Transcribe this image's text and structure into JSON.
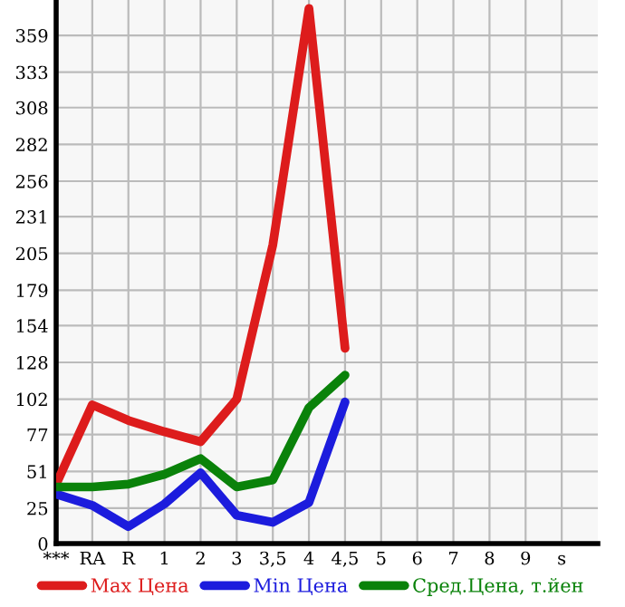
{
  "chart_data": {
    "type": "line",
    "categories": [
      "***",
      "RA",
      "R",
      "1",
      "2",
      "3",
      "3,5",
      "4",
      "4,5",
      "5",
      "6",
      "7",
      "8",
      "9",
      "s"
    ],
    "series": [
      {
        "name": "Max Цена",
        "color": "#dd1c1c",
        "values": [
          42,
          98,
          87,
          79,
          72,
          102,
          211,
          378,
          138,
          null,
          null,
          null,
          null,
          null,
          null
        ]
      },
      {
        "name": "Min Цена",
        "color": "#1c1cdd",
        "values": [
          35,
          27,
          12,
          28,
          50,
          20,
          15,
          29,
          100,
          null,
          null,
          null,
          null,
          null,
          null
        ]
      },
      {
        "name": "Сред.Цена, т.йен",
        "color": "#0a820a",
        "values": [
          40,
          40,
          42,
          49,
          60,
          40,
          45,
          96,
          119,
          null,
          null,
          null,
          null,
          null,
          null
        ]
      }
    ],
    "ylim": [
      0,
      384
    ],
    "yticks": [
      0,
      25,
      51,
      77,
      102,
      128,
      154,
      179,
      205,
      231,
      256,
      282,
      308,
      333,
      359
    ],
    "grid": true,
    "legend": "bottom",
    "marker": "none",
    "line_style": "solid"
  }
}
